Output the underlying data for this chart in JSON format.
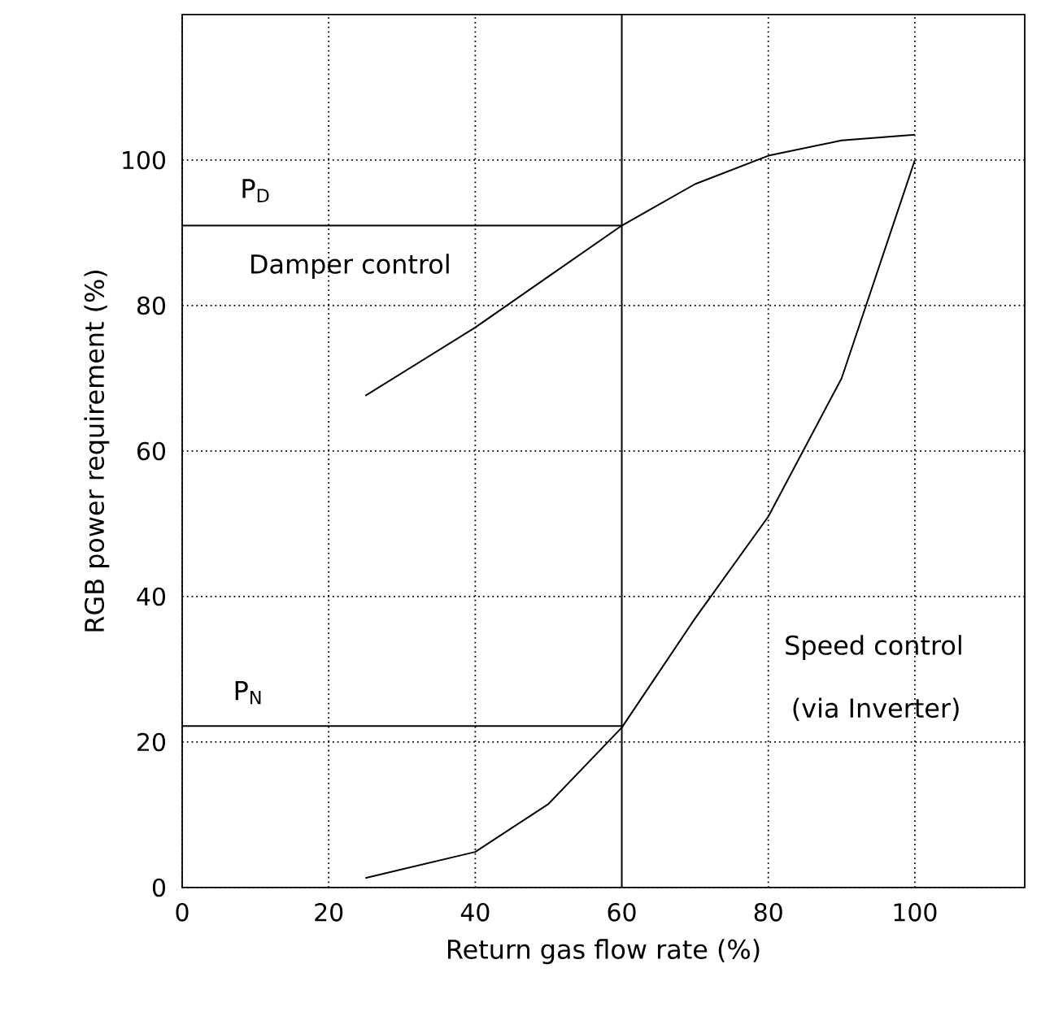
{
  "chart_data": {
    "type": "line",
    "xlabel": "Return gas flow rate (%)",
    "ylabel": "RGB power requirement (%)",
    "xlim": [
      0,
      115
    ],
    "ylim": [
      0,
      120
    ],
    "xticks": [
      0,
      20,
      40,
      60,
      80,
      100
    ],
    "yticks": [
      0,
      20,
      40,
      60,
      80,
      100
    ],
    "grid": true,
    "marker": "none",
    "line_style": "solid",
    "series": [
      {
        "color": "#000000",
        "x": [
          25,
          40,
          50,
          60,
          70,
          80,
          90,
          100
        ],
        "values": [
          67.6,
          77,
          84,
          91,
          96.7,
          100.6,
          102.7,
          103.5
        ]
      },
      {
        "color": "#000000",
        "x": [
          25,
          40,
          50,
          60,
          70,
          80,
          90,
          100
        ],
        "values": [
          1.3,
          4.9,
          11.5,
          22,
          37,
          51,
          70,
          100
        ]
      },
      {
        "color": "#000000",
        "x": [
          0,
          60
        ],
        "values": [
          91,
          91
        ]
      },
      {
        "color": "#000000",
        "x": [
          0,
          60
        ],
        "values": [
          22.2,
          22.2
        ]
      }
    ],
    "ref_lines": [
      {
        "axis": "x",
        "value": 60,
        "color": "#000000",
        "line_style": "solid"
      }
    ],
    "annotations": [
      "P$_{D}$",
      "Damper control",
      "P$_{N}$",
      "Speed control",
      "(via Inverter)"
    ]
  }
}
